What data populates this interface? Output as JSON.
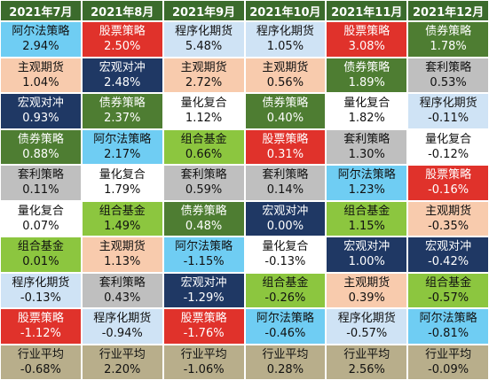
{
  "table": {
    "header": [
      "2021年7月",
      "2021年8月",
      "2021年9月",
      "2021年10月",
      "2021年11月",
      "2021年12月"
    ],
    "columns": [
      {
        "cells": [
          {
            "name": "阿尔法策略",
            "value": "2.94%",
            "color": "#6fcdf3"
          },
          {
            "name": "主观期货",
            "value": "1.04%",
            "color": "#f8cbad"
          },
          {
            "name": "宏观对冲",
            "value": "0.93%",
            "color": "#1f3864"
          },
          {
            "name": "债券策略",
            "value": "0.88%",
            "color": "#4e7d32"
          },
          {
            "name": "套利策略",
            "value": "0.11%",
            "color": "#bfbfbf"
          },
          {
            "name": "量化复合",
            "value": "0.07%",
            "color": "#ffffff"
          },
          {
            "name": "组合基金",
            "value": "0.01%",
            "color": "#8cc63f"
          },
          {
            "name": "程序化期货",
            "value": "-0.13%",
            "color": "#cfe3f5"
          },
          {
            "name": "股票策略",
            "value": "-1.12%",
            "color": "#e0322b"
          },
          {
            "name": "行业平均",
            "value": "-0.68%",
            "color": "#b8ae8b"
          }
        ]
      },
      {
        "cells": [
          {
            "name": "股票策略",
            "value": "2.50%",
            "color": "#e0322b"
          },
          {
            "name": "宏观对冲",
            "value": "2.48%",
            "color": "#1f3864"
          },
          {
            "name": "债券策略",
            "value": "2.37%",
            "color": "#4e7d32"
          },
          {
            "name": "阿尔法策略",
            "value": "2.17%",
            "color": "#6fcdf3"
          },
          {
            "name": "量化复合",
            "value": "1.79%",
            "color": "#ffffff"
          },
          {
            "name": "组合基金",
            "value": "1.49%",
            "color": "#8cc63f"
          },
          {
            "name": "主观期货",
            "value": "1.13%",
            "color": "#f8cbad"
          },
          {
            "name": "套利策略",
            "value": "0.43%",
            "color": "#bfbfbf"
          },
          {
            "name": "程序化期货",
            "value": "-0.94%",
            "color": "#cfe3f5"
          },
          {
            "name": "行业平均",
            "value": "2.20%",
            "color": "#b8ae8b"
          }
        ]
      },
      {
        "cells": [
          {
            "name": "程序化期货",
            "value": "5.48%",
            "color": "#cfe3f5"
          },
          {
            "name": "主观期货",
            "value": "2.72%",
            "color": "#f8cbad"
          },
          {
            "name": "量化复合",
            "value": "1.12%",
            "color": "#ffffff"
          },
          {
            "name": "组合基金",
            "value": "0.66%",
            "color": "#8cc63f"
          },
          {
            "name": "套利策略",
            "value": "0.59%",
            "color": "#bfbfbf"
          },
          {
            "name": "债券策略",
            "value": "0.48%",
            "color": "#4e7d32"
          },
          {
            "name": "阿尔法策略",
            "value": "-1.15%",
            "color": "#6fcdf3"
          },
          {
            "name": "宏观对冲",
            "value": "-1.29%",
            "color": "#1f3864"
          },
          {
            "name": "股票策略",
            "value": "-1.76%",
            "color": "#e0322b"
          },
          {
            "name": "行业平均",
            "value": "-1.06%",
            "color": "#b8ae8b"
          }
        ]
      },
      {
        "cells": [
          {
            "name": "程序化期货",
            "value": "1.05%",
            "color": "#cfe3f5"
          },
          {
            "name": "主观期货",
            "value": "0.56%",
            "color": "#f8cbad"
          },
          {
            "name": "债券策略",
            "value": "0.40%",
            "color": "#4e7d32"
          },
          {
            "name": "股票策略",
            "value": "0.31%",
            "color": "#e0322b"
          },
          {
            "name": "套利策略",
            "value": "0.14%",
            "color": "#bfbfbf"
          },
          {
            "name": "宏观对冲",
            "value": "0.00%",
            "color": "#1f3864"
          },
          {
            "name": "量化复合",
            "value": "-0.13%",
            "color": "#ffffff"
          },
          {
            "name": "组合基金",
            "value": "-0.26%",
            "color": "#8cc63f"
          },
          {
            "name": "阿尔法策略",
            "value": "-0.46%",
            "color": "#6fcdf3"
          },
          {
            "name": "行业平均",
            "value": "0.28%",
            "color": "#b8ae8b"
          }
        ]
      },
      {
        "cells": [
          {
            "name": "股票策略",
            "value": "3.08%",
            "color": "#e0322b"
          },
          {
            "name": "债券策略",
            "value": "1.89%",
            "color": "#4e7d32"
          },
          {
            "name": "量化复合",
            "value": "1.82%",
            "color": "#ffffff"
          },
          {
            "name": "套利策略",
            "value": "1.30%",
            "color": "#bfbfbf"
          },
          {
            "name": "阿尔法策略",
            "value": "1.23%",
            "color": "#6fcdf3"
          },
          {
            "name": "组合基金",
            "value": "1.15%",
            "color": "#8cc63f"
          },
          {
            "name": "宏观对冲",
            "value": "1.00%",
            "color": "#1f3864"
          },
          {
            "name": "主观期货",
            "value": "0.39%",
            "color": "#f8cbad"
          },
          {
            "name": "程序化期货",
            "value": "-0.57%",
            "color": "#cfe3f5"
          },
          {
            "name": "行业平均",
            "value": "2.56%",
            "color": "#b8ae8b"
          }
        ]
      },
      {
        "cells": [
          {
            "name": "债券策略",
            "value": "1.78%",
            "color": "#4e7d32"
          },
          {
            "name": "套利策略",
            "value": "0.53%",
            "color": "#bfbfbf"
          },
          {
            "name": "程序化期货",
            "value": "-0.11%",
            "color": "#cfe3f5"
          },
          {
            "name": "量化复合",
            "value": "-0.12%",
            "color": "#ffffff"
          },
          {
            "name": "股票策略",
            "value": "-0.16%",
            "color": "#e0322b"
          },
          {
            "name": "主观期货",
            "value": "-0.35%",
            "color": "#f8cbad"
          },
          {
            "name": "宏观对冲",
            "value": "-0.42%",
            "color": "#1f3864"
          },
          {
            "name": "组合基金",
            "value": "-0.57%",
            "color": "#8cc63f"
          },
          {
            "name": "阿尔法策略",
            "value": "-0.81%",
            "color": "#6fcdf3"
          },
          {
            "name": "行业平均",
            "value": "-0.09%",
            "color": "#b8ae8b"
          }
        ]
      }
    ]
  }
}
